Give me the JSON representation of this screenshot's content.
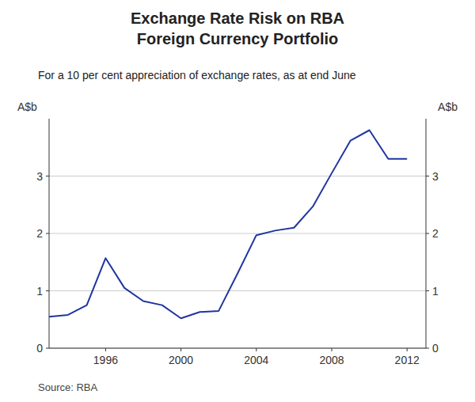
{
  "chart_data": {
    "type": "line",
    "title": "Exchange Rate Risk on RBA\nForeign Currency Portfolio",
    "subtitle": "For a 10 per cent appreciation of exchange rates, as at end June",
    "ylabel": "A$b",
    "y2label": "A$b",
    "source": "Source: RBA",
    "x": [
      1993,
      1994,
      1995,
      1996,
      1997,
      1998,
      1999,
      2000,
      2001,
      2002,
      2003,
      2004,
      2005,
      2006,
      2007,
      2008,
      2009,
      2010,
      2011,
      2012
    ],
    "values": [
      0.55,
      0.58,
      0.75,
      1.57,
      1.05,
      0.82,
      0.75,
      0.52,
      0.63,
      0.65,
      1.3,
      1.97,
      2.05,
      2.1,
      2.47,
      3.05,
      3.62,
      3.8,
      3.3,
      3.3
    ],
    "color": "#2035a0",
    "xlim": [
      1993,
      2013
    ],
    "xticks": [
      1996,
      2000,
      2004,
      2008,
      2012
    ],
    "ylim": [
      0,
      4.0
    ],
    "yticks": [
      0,
      1,
      2,
      3
    ],
    "y2lim": [
      0,
      4.0
    ],
    "y2ticks": [
      0,
      1,
      2,
      3
    ],
    "grid": true
  }
}
